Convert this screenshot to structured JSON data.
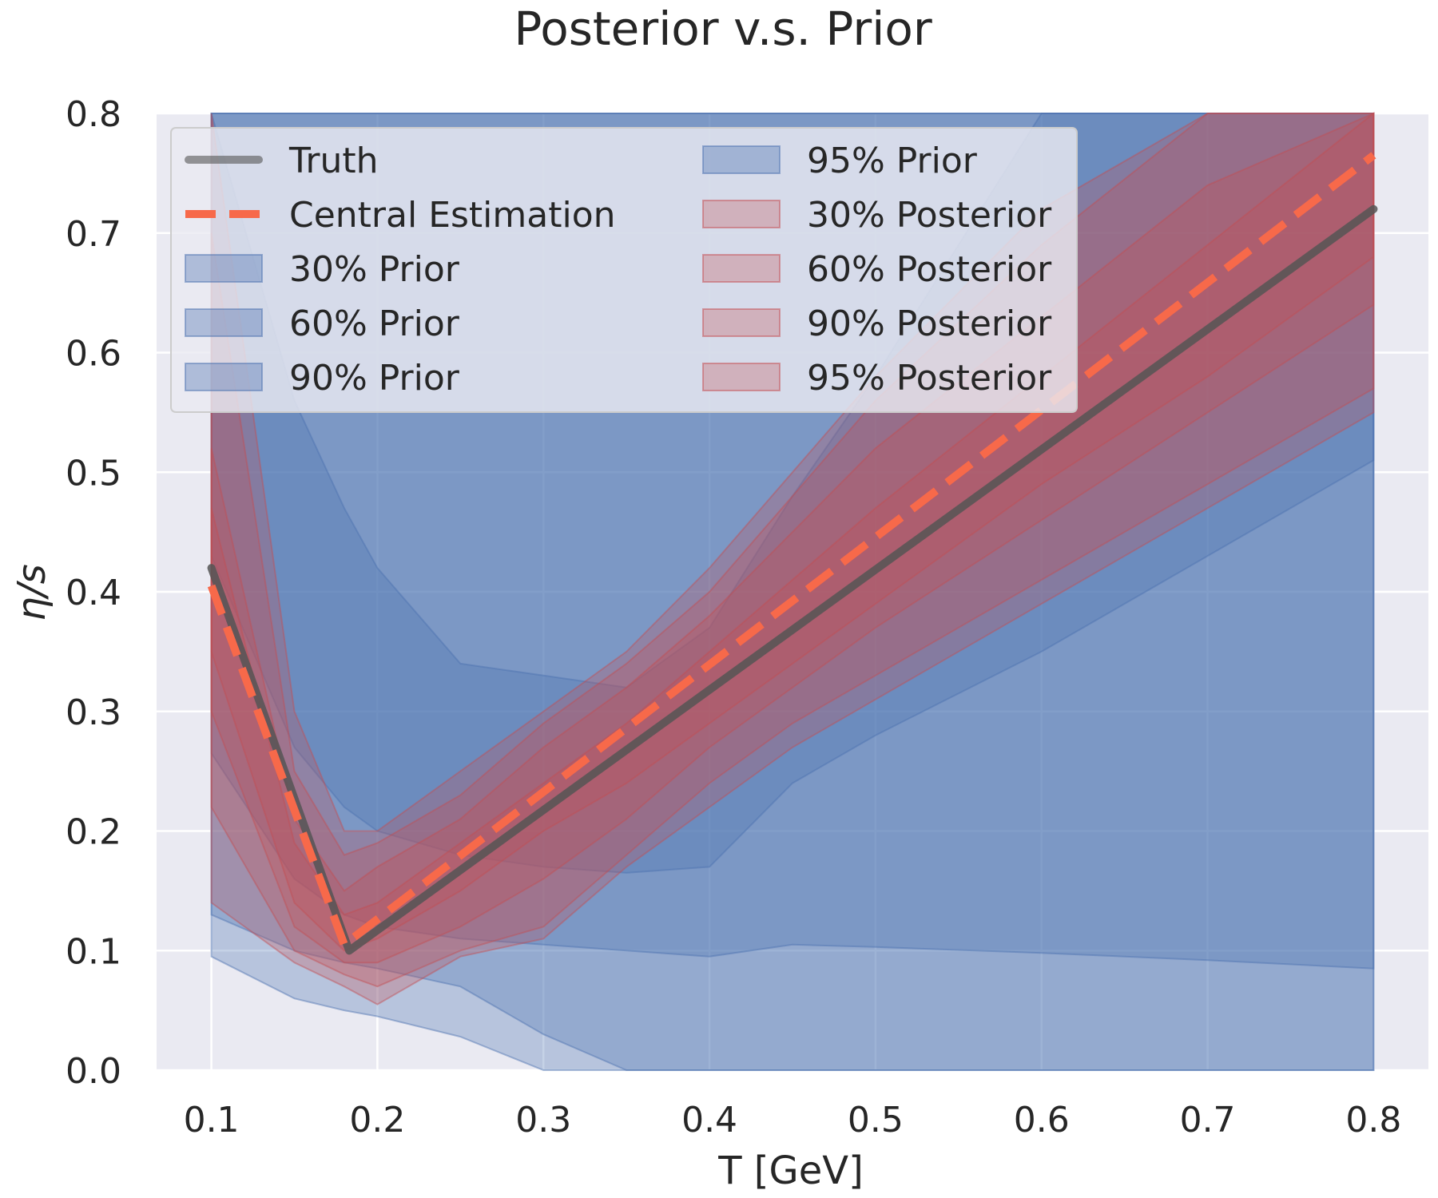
{
  "chart_data": {
    "type": "area",
    "title": "Posterior v.s. Prior",
    "xlabel": "T [GeV]",
    "ylabel": "η/s",
    "xlim": [
      0.067,
      0.833
    ],
    "ylim": [
      0.0,
      0.8
    ],
    "x_ticks": [
      "0.1",
      "0.2",
      "0.3",
      "0.4",
      "0.5",
      "0.6",
      "0.7",
      "0.8"
    ],
    "y_ticks": [
      "0.0",
      "0.1",
      "0.2",
      "0.3",
      "0.4",
      "0.5",
      "0.6",
      "0.7",
      "0.8"
    ],
    "grid": true,
    "legend_position": "top-left",
    "colors": {
      "prior": "#4c72b0",
      "posterior": "#c44e52",
      "truth": "#555555",
      "central": "#f7694a",
      "plot_bg": "#eaeaf2"
    },
    "x": [
      0.1,
      0.15,
      0.18,
      0.2,
      0.25,
      0.3,
      0.35,
      0.4,
      0.45,
      0.5,
      0.6,
      0.7,
      0.8
    ],
    "series": [
      {
        "name": "95% Prior",
        "kind": "prior_band",
        "lower": [
          0.095,
          0.06,
          0.05,
          0.045,
          0.028,
          0.0,
          0.0,
          0.0,
          0.0,
          0.0,
          0.0,
          0.0,
          0.0
        ],
        "upper": [
          0.8,
          0.8,
          0.8,
          0.8,
          0.8,
          0.8,
          0.8,
          0.8,
          0.8,
          0.8,
          0.8,
          0.8,
          0.8
        ]
      },
      {
        "name": "90% Prior",
        "kind": "prior_band",
        "lower": [
          0.13,
          0.1,
          0.09,
          0.085,
          0.07,
          0.03,
          0.0,
          0.0,
          0.0,
          0.0,
          0.0,
          0.0,
          0.0
        ],
        "upper": [
          0.8,
          0.8,
          0.8,
          0.8,
          0.8,
          0.8,
          0.8,
          0.8,
          0.8,
          0.8,
          0.8,
          0.8,
          0.8
        ]
      },
      {
        "name": "60% Prior",
        "kind": "prior_band",
        "lower": [
          0.265,
          0.16,
          0.13,
          0.12,
          0.11,
          0.105,
          0.1,
          0.095,
          0.105,
          0.103,
          0.098,
          0.092,
          0.085
        ],
        "upper": [
          0.8,
          0.8,
          0.8,
          0.8,
          0.8,
          0.8,
          0.8,
          0.8,
          0.8,
          0.8,
          0.8,
          0.8,
          0.8
        ]
      },
      {
        "name": "30% Prior",
        "kind": "prior_band",
        "lower": [
          0.43,
          0.27,
          0.22,
          0.2,
          0.18,
          0.17,
          0.165,
          0.17,
          0.24,
          0.28,
          0.35,
          0.43,
          0.51
        ],
        "upper": [
          0.8,
          0.56,
          0.47,
          0.42,
          0.34,
          0.33,
          0.32,
          0.37,
          0.48,
          0.58,
          0.8,
          0.8,
          0.8
        ]
      },
      {
        "name": "95% Posterior",
        "kind": "posterior_band",
        "lower": [
          0.14,
          0.09,
          0.07,
          0.055,
          0.095,
          0.11,
          0.17,
          0.22,
          0.27,
          0.31,
          0.39,
          0.47,
          0.55
        ],
        "upper": [
          0.8,
          0.3,
          0.2,
          0.2,
          0.25,
          0.3,
          0.35,
          0.42,
          0.5,
          0.58,
          0.72,
          0.8,
          0.8
        ]
      },
      {
        "name": "90% Posterior",
        "kind": "posterior_band",
        "lower": [
          0.22,
          0.1,
          0.08,
          0.07,
          0.1,
          0.12,
          0.18,
          0.24,
          0.29,
          0.33,
          0.41,
          0.49,
          0.57
        ],
        "upper": [
          0.7,
          0.25,
          0.18,
          0.19,
          0.23,
          0.29,
          0.34,
          0.4,
          0.48,
          0.56,
          0.69,
          0.8,
          0.8
        ]
      },
      {
        "name": "60% Posterior",
        "kind": "posterior_band",
        "lower": [
          0.3,
          0.12,
          0.09,
          0.09,
          0.12,
          0.16,
          0.21,
          0.27,
          0.32,
          0.37,
          0.46,
          0.55,
          0.64
        ],
        "upper": [
          0.52,
          0.21,
          0.15,
          0.17,
          0.21,
          0.27,
          0.32,
          0.38,
          0.45,
          0.52,
          0.63,
          0.74,
          0.8
        ]
      },
      {
        "name": "30% Posterior",
        "kind": "posterior_band",
        "lower": [
          0.35,
          0.14,
          0.1,
          0.11,
          0.15,
          0.2,
          0.24,
          0.29,
          0.34,
          0.39,
          0.49,
          0.58,
          0.68
        ],
        "upper": [
          0.47,
          0.19,
          0.13,
          0.14,
          0.19,
          0.24,
          0.29,
          0.35,
          0.41,
          0.47,
          0.58,
          0.69,
          0.8
        ]
      },
      {
        "name": "Truth",
        "kind": "line",
        "x": [
          0.1,
          0.183,
          0.8
        ],
        "y": [
          0.42,
          0.1,
          0.72
        ]
      },
      {
        "name": "Central Estimation",
        "kind": "dashed_line",
        "x": [
          0.1,
          0.18,
          0.8
        ],
        "y": [
          0.405,
          0.105,
          0.765
        ]
      }
    ],
    "legend": [
      {
        "label": "Truth",
        "kind": "line"
      },
      {
        "label": "Central Estimation",
        "kind": "dashed_line"
      },
      {
        "label": "30% Prior",
        "kind": "prior_patch"
      },
      {
        "label": "60% Prior",
        "kind": "prior_patch"
      },
      {
        "label": "90% Prior",
        "kind": "prior_patch"
      },
      {
        "label": "95% Prior",
        "kind": "prior_patch"
      },
      {
        "label": "30% Posterior",
        "kind": "posterior_patch"
      },
      {
        "label": "60% Posterior",
        "kind": "posterior_patch"
      },
      {
        "label": "90% Posterior",
        "kind": "posterior_patch"
      },
      {
        "label": "95% Posterior",
        "kind": "posterior_patch"
      }
    ]
  }
}
